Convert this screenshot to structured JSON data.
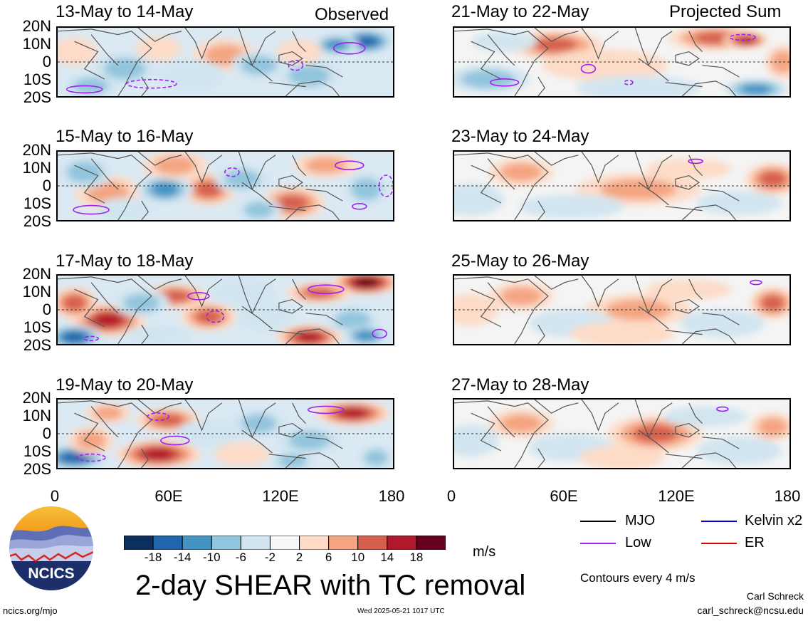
{
  "chart_data": {
    "type": "heatmap",
    "title": "2-day SHEAR with TC removal",
    "units": "m/s",
    "contour_note": "Contours every 4 m/s",
    "lat_ticks": [
      "20N",
      "10N",
      "0",
      "10S",
      "20S"
    ],
    "lon_ticks": [
      "0",
      "60E",
      "120E",
      "180"
    ],
    "xlim": [
      0,
      180
    ],
    "ylim": [
      -20,
      20
    ],
    "colorbar": {
      "levels": [
        "-18",
        "-14",
        "-10",
        "-6",
        "-2",
        "2",
        "6",
        "10",
        "14",
        "18"
      ],
      "colors": [
        "#0d2f5e",
        "#2166ac",
        "#4393c3",
        "#92c5de",
        "#d1e5f0",
        "#f7f7f7",
        "#fddbc7",
        "#f4a582",
        "#d6604d",
        "#b2182b",
        "#67001f"
      ]
    },
    "legend": [
      {
        "label": "MJO",
        "color": "#000000"
      },
      {
        "label": "Kelvin x2",
        "color": "#0000dd"
      },
      {
        "label": "Low",
        "color": "#a020f0"
      },
      {
        "label": "ER",
        "color": "#dd0000"
      }
    ],
    "panels": [
      {
        "label": "13-May to 14-May",
        "tag": "Observed",
        "kind": "observed",
        "blobs": [
          [
            0.92,
            0.2,
            25,
            10,
            -16
          ],
          [
            0.83,
            0.25,
            20,
            8,
            -10
          ],
          [
            0.5,
            0.4,
            30,
            14,
            6
          ],
          [
            0.6,
            0.55,
            25,
            12,
            -6
          ],
          [
            0.2,
            0.6,
            30,
            14,
            -6
          ],
          [
            0.05,
            0.35,
            20,
            12,
            4
          ],
          [
            0.4,
            0.7,
            30,
            14,
            -4
          ],
          [
            0.75,
            0.7,
            30,
            14,
            -6
          ],
          [
            0.1,
            0.85,
            25,
            10,
            -8
          ],
          [
            0.3,
            0.3,
            20,
            10,
            4
          ],
          [
            0.72,
            0.35,
            20,
            10,
            4
          ]
        ],
        "lows": [
          [
            0.08,
            0.9,
            25,
            5
          ],
          [
            0.28,
            0.82,
            35,
            6
          ],
          [
            0.87,
            0.3,
            22,
            8
          ],
          [
            0.71,
            0.55,
            10,
            7
          ]
        ]
      },
      {
        "label": "21-May to 22-May",
        "tag": "Projected Sum",
        "kind": "projected",
        "blobs": [
          [
            0.3,
            0.25,
            45,
            12,
            12
          ],
          [
            0.78,
            0.15,
            45,
            10,
            10
          ],
          [
            0.87,
            0.18,
            20,
            6,
            16
          ],
          [
            0.45,
            0.55,
            60,
            14,
            4
          ],
          [
            0.1,
            0.75,
            40,
            12,
            -6
          ],
          [
            0.55,
            0.88,
            60,
            10,
            -4
          ],
          [
            0.9,
            0.9,
            30,
            8,
            -10
          ],
          [
            0.15,
            0.2,
            30,
            8,
            -4
          ],
          [
            0.98,
            0.5,
            15,
            15,
            8
          ]
        ],
        "lows": [
          [
            0.15,
            0.8,
            20,
            5
          ],
          [
            0.86,
            0.14,
            18,
            4
          ],
          [
            0.4,
            0.6,
            10,
            6
          ],
          [
            0.52,
            0.8,
            6,
            3
          ]
        ]
      },
      {
        "label": "15-May to 16-May",
        "tag": "",
        "kind": "observed",
        "blobs": [
          [
            0.8,
            0.2,
            30,
            10,
            8
          ],
          [
            0.15,
            0.6,
            30,
            15,
            8
          ],
          [
            0.45,
            0.55,
            25,
            14,
            10
          ],
          [
            0.32,
            0.55,
            25,
            12,
            -10
          ],
          [
            0.55,
            0.4,
            25,
            12,
            -6
          ],
          [
            0.7,
            0.75,
            30,
            14,
            10
          ],
          [
            0.35,
            0.2,
            30,
            12,
            6
          ],
          [
            0.6,
            0.85,
            20,
            10,
            -6
          ],
          [
            0.08,
            0.3,
            25,
            14,
            -6
          ],
          [
            0.92,
            0.55,
            20,
            15,
            -8
          ],
          [
            0.2,
            0.85,
            25,
            10,
            -4
          ]
        ],
        "lows": [
          [
            0.87,
            0.2,
            20,
            6
          ],
          [
            0.52,
            0.3,
            10,
            6
          ],
          [
            0.1,
            0.85,
            25,
            6
          ],
          [
            0.98,
            0.5,
            10,
            15
          ],
          [
            0.9,
            0.8,
            10,
            4
          ]
        ]
      },
      {
        "label": "23-May to 24-May",
        "tag": "",
        "kind": "projected",
        "blobs": [
          [
            0.2,
            0.3,
            30,
            12,
            6
          ],
          [
            0.55,
            0.55,
            60,
            14,
            5
          ],
          [
            0.95,
            0.4,
            25,
            14,
            10
          ],
          [
            0.35,
            0.8,
            50,
            10,
            -4
          ],
          [
            0.85,
            0.75,
            40,
            10,
            -3
          ],
          [
            0.7,
            0.25,
            40,
            8,
            4
          ],
          [
            0.05,
            0.7,
            30,
            14,
            -3
          ]
        ],
        "lows": [
          [
            0.72,
            0.14,
            10,
            3
          ]
        ]
      },
      {
        "label": "17-May to 18-May",
        "tag": "",
        "kind": "observed",
        "blobs": [
          [
            0.92,
            0.1,
            30,
            10,
            18
          ],
          [
            0.78,
            0.25,
            30,
            8,
            10
          ],
          [
            0.15,
            0.65,
            35,
            14,
            16
          ],
          [
            0.45,
            0.6,
            25,
            12,
            12
          ],
          [
            0.35,
            0.3,
            30,
            10,
            10
          ],
          [
            0.05,
            0.4,
            20,
            14,
            10
          ],
          [
            0.75,
            0.9,
            30,
            10,
            14
          ],
          [
            0.05,
            0.9,
            25,
            10,
            -14
          ],
          [
            0.55,
            0.25,
            30,
            12,
            -4
          ],
          [
            0.25,
            0.4,
            25,
            12,
            -8
          ],
          [
            0.62,
            0.6,
            25,
            12,
            -4
          ],
          [
            0.88,
            0.65,
            25,
            12,
            -6
          ],
          [
            0.92,
            0.88,
            20,
            8,
            -10
          ],
          [
            0.3,
            0.88,
            30,
            8,
            -4
          ]
        ],
        "lows": [
          [
            0.42,
            0.3,
            15,
            5
          ],
          [
            0.47,
            0.6,
            12,
            8
          ],
          [
            0.8,
            0.2,
            25,
            6
          ],
          [
            0.1,
            0.92,
            10,
            3
          ],
          [
            0.96,
            0.85,
            10,
            6
          ]
        ]
      },
      {
        "label": "25-May to 26-May",
        "tag": "",
        "kind": "projected",
        "blobs": [
          [
            0.2,
            0.3,
            30,
            12,
            6
          ],
          [
            0.55,
            0.5,
            50,
            14,
            8
          ],
          [
            0.95,
            0.4,
            20,
            14,
            10
          ],
          [
            0.35,
            0.7,
            40,
            12,
            -4
          ],
          [
            0.8,
            0.7,
            40,
            12,
            -4
          ],
          [
            0.05,
            0.5,
            25,
            14,
            4
          ],
          [
            0.7,
            0.2,
            40,
            8,
            3
          ],
          [
            0.5,
            0.85,
            50,
            10,
            4
          ]
        ],
        "lows": [
          [
            0.9,
            0.1,
            8,
            3
          ]
        ]
      },
      {
        "label": "19-May to 20-May",
        "tag": "",
        "kind": "observed",
        "blobs": [
          [
            0.88,
            0.2,
            35,
            10,
            16
          ],
          [
            0.33,
            0.3,
            30,
            10,
            10
          ],
          [
            0.3,
            0.8,
            40,
            12,
            14
          ],
          [
            0.05,
            0.85,
            30,
            10,
            -14
          ],
          [
            0.15,
            0.2,
            20,
            8,
            8
          ],
          [
            0.45,
            0.5,
            30,
            12,
            -4
          ],
          [
            0.6,
            0.35,
            25,
            12,
            -6
          ],
          [
            0.75,
            0.6,
            30,
            12,
            -6
          ],
          [
            0.7,
            0.9,
            20,
            8,
            -8
          ],
          [
            0.55,
            0.8,
            25,
            10,
            4
          ],
          [
            0.1,
            0.6,
            20,
            12,
            6
          ],
          [
            0.95,
            0.85,
            15,
            10,
            -6
          ]
        ],
        "lows": [
          [
            0.8,
            0.15,
            25,
            5
          ],
          [
            0.3,
            0.25,
            15,
            5
          ],
          [
            0.35,
            0.6,
            20,
            6
          ],
          [
            0.1,
            0.85,
            20,
            5
          ]
        ]
      },
      {
        "label": "27-May to 28-May",
        "tag": "",
        "kind": "projected",
        "blobs": [
          [
            0.2,
            0.35,
            30,
            12,
            6
          ],
          [
            0.6,
            0.5,
            45,
            16,
            10
          ],
          [
            0.95,
            0.4,
            20,
            12,
            8
          ],
          [
            0.35,
            0.7,
            40,
            12,
            -4
          ],
          [
            0.85,
            0.75,
            40,
            12,
            -4
          ],
          [
            0.05,
            0.6,
            25,
            14,
            -3
          ],
          [
            0.5,
            0.85,
            40,
            10,
            4
          ],
          [
            0.75,
            0.25,
            40,
            8,
            -3
          ]
        ],
        "lows": [
          [
            0.8,
            0.14,
            8,
            3
          ]
        ]
      }
    ]
  },
  "legend_title_units": "m/s",
  "footer": {
    "left": "ncics.org/mjo",
    "center": "Wed 2025-05-21 1017 UTC",
    "author": "Carl Schreck",
    "email": "carl_schreck@ncsu.edu"
  },
  "logo": {
    "text": "NCICS"
  }
}
